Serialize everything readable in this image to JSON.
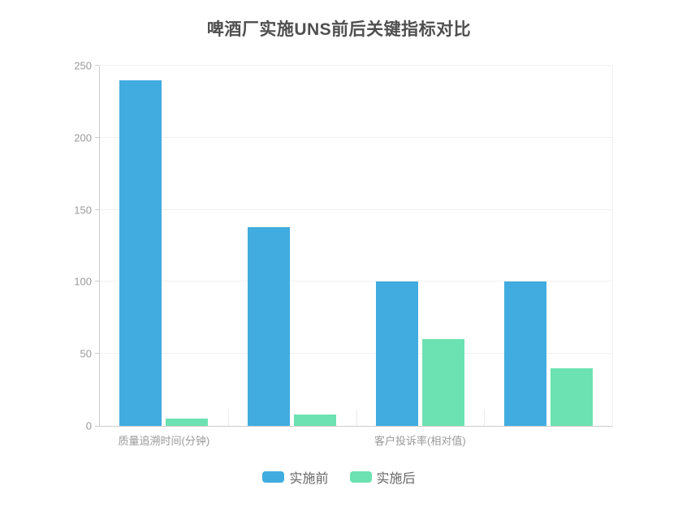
{
  "chart_data": {
    "type": "bar",
    "title": "啤酒厂实施UNS前后关键指标对比",
    "categories": [
      "质量追溯时间(分钟)",
      "",
      "客户投诉率(相对值)",
      ""
    ],
    "series": [
      {
        "key": "before",
        "name": "实施前",
        "color": "#41ACDF",
        "values": [
          240,
          138,
          100,
          100
        ]
      },
      {
        "key": "after",
        "name": "实施后",
        "color": "#6CE2B2",
        "values": [
          5,
          8,
          60,
          40
        ]
      }
    ],
    "y_axis": {
      "min": 0,
      "max": 250,
      "interval": 50,
      "ticks": [
        0,
        50,
        100,
        150,
        200,
        250
      ]
    },
    "x_axis": {
      "visible_labels": [
        "质量追溯时间(分钟)",
        "客户投诉率(相对值)"
      ]
    },
    "grid": true,
    "legend_position": "bottom",
    "colors": {
      "before": "#41ACDF",
      "after": "#6CE2B2",
      "title_text": "#4F4F4F",
      "axis_label": "#999999",
      "legend_text": "#666666",
      "axis_line": "#CCCCCC",
      "grid_line": "#F0F0F0",
      "background": "#FFFFFF"
    }
  }
}
